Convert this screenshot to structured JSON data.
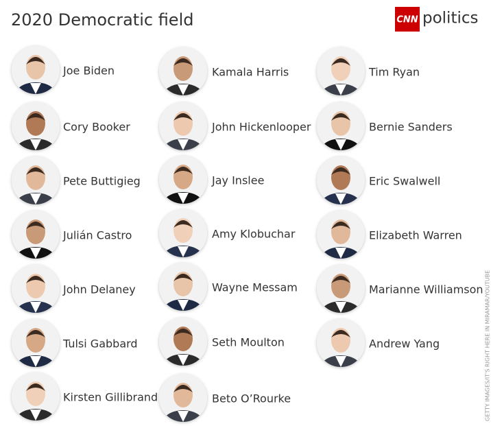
{
  "header": {
    "title": "2020 Democratic field",
    "logo": {
      "brand": "CNN",
      "section": "politics"
    }
  },
  "credit": "GETTY IMAGES/IT'S RIGHT HERE IN MIRAMAR/YOUTUBE",
  "columns": [
    [
      "Joe Biden",
      "Cory Booker",
      "Pete Buttigieg",
      "Julián Castro",
      "John Delaney",
      "Tulsi Gabbard",
      "Kirsten Gillibrand"
    ],
    [
      "Kamala Harris",
      "John Hickenlooper",
      "Jay Inslee",
      "Amy Klobuchar",
      "Wayne Messam",
      "Seth Moulton",
      "Beto O’Rourke"
    ],
    [
      "Tim Ryan",
      "Bernie Sanders",
      "Eric Swalwell",
      "Elizabeth Warren",
      "Marianne Williamson",
      "Andrew Yang"
    ]
  ]
}
